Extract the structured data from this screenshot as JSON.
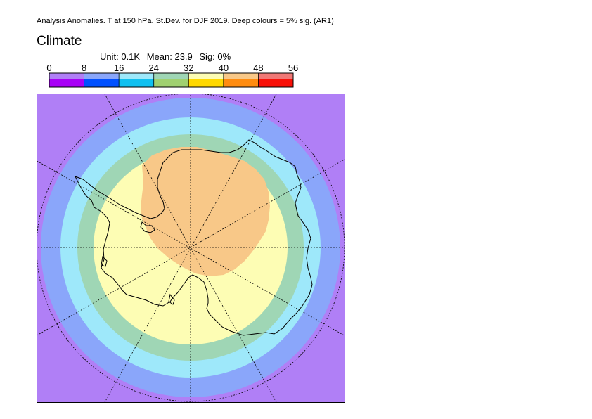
{
  "caption": "Analysis Anomalies. T at 150 hPa. St.Dev. for DJF 2019.  Deep colours = 5% sig. (AR1)",
  "heading": "Climate",
  "stats": {
    "unit": "Unit: 0.1K",
    "mean": "Mean: 23.9",
    "sig": "Sig: 0%"
  },
  "colorbar": {
    "ticks": [
      "0",
      "8",
      "16",
      "24",
      "32",
      "40",
      "48",
      "56"
    ],
    "light_colors": [
      "#b07ff6",
      "#8aa6fa",
      "#9ee8fa",
      "#9fd6b5",
      "#fdfdb4",
      "#f8c888",
      "#f07876"
    ],
    "deep_colors": [
      "#a800f6",
      "#0050ff",
      "#10c0f0",
      "#a0d070",
      "#ffd800",
      "#ff8c10",
      "#f81008"
    ]
  },
  "map": {
    "projection": "south polar stereographic",
    "field_bands": [
      "#b07ff6",
      "#8aa6fa",
      "#9ee8fa",
      "#9fd6b5",
      "#fdfdb4",
      "#f8c888"
    ],
    "meridian_spacing_deg": 30,
    "latitude_circles": 1
  }
}
